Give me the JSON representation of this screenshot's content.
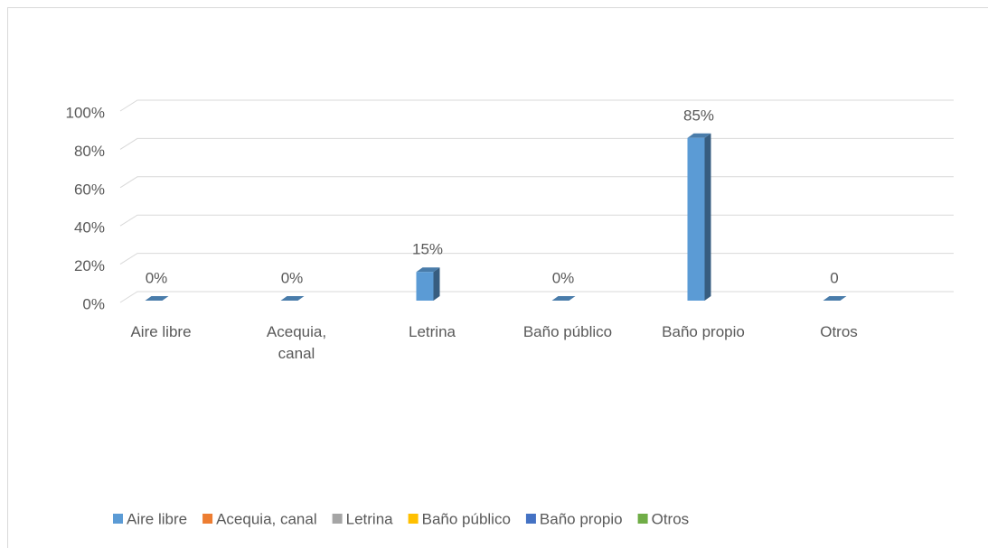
{
  "chart_data": {
    "type": "bar3d",
    "categories": [
      "Aire libre",
      "Acequia, canal",
      "Letrina",
      "Baño público",
      "Baño propio",
      "Otros"
    ],
    "values": [
      0,
      0,
      15,
      0,
      85,
      0
    ],
    "value_labels": [
      "0%",
      "0%",
      "15%",
      "0%",
      "85%",
      "0"
    ],
    "color": "#5b9bd5",
    "ylim": [
      0,
      100
    ],
    "yticks": [
      {
        "value": 0,
        "label": "0%"
      },
      {
        "value": 20,
        "label": "20%"
      },
      {
        "value": 40,
        "label": "40%"
      },
      {
        "value": 60,
        "label": "60%"
      },
      {
        "value": 80,
        "label": "80%"
      },
      {
        "value": 100,
        "label": "100%"
      }
    ],
    "grid": true,
    "legend": [
      {
        "name": "Aire libre",
        "color": "#5b9bd5"
      },
      {
        "name": "Acequia, canal",
        "color": "#ed7d31"
      },
      {
        "name": "Letrina",
        "color": "#a5a5a5"
      },
      {
        "name": "Baño público",
        "color": "#ffc000"
      },
      {
        "name": "Baño propio",
        "color": "#4472c4"
      },
      {
        "name": "Otros",
        "color": "#70ad47"
      }
    ]
  }
}
